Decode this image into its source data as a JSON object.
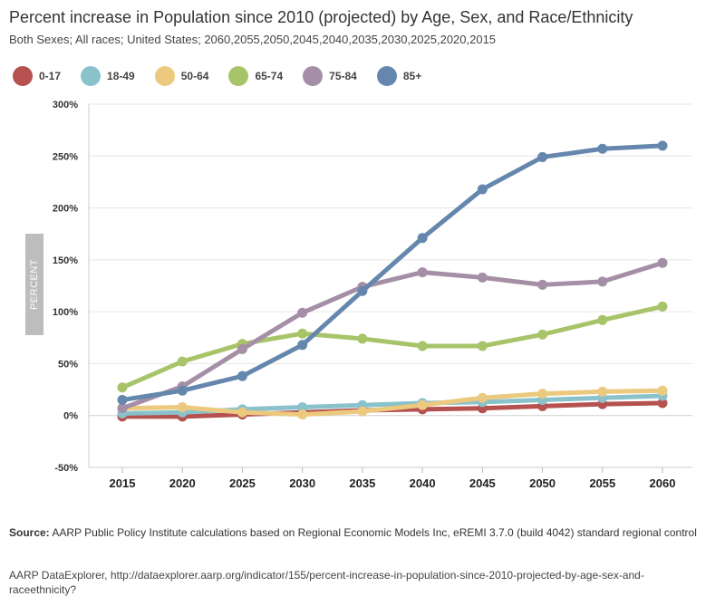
{
  "header": {
    "title": "Percent increase in Population since 2010 (projected) by Age, Sex, and Race/Ethnicity",
    "subtitle": "Both Sexes; All races; United States; 2060,2055,2050,2045,2040,2035,2030,2025,2020,2015"
  },
  "legend": [
    {
      "label": "0-17",
      "color": "#b5514f"
    },
    {
      "label": "18-49",
      "color": "#8ac2cc"
    },
    {
      "label": "50-64",
      "color": "#ebc97e"
    },
    {
      "label": "65-74",
      "color": "#a8c46a"
    },
    {
      "label": "75-84",
      "color": "#a48fa6"
    },
    {
      "label": "85+",
      "color": "#6587ad"
    }
  ],
  "footer": {
    "source_label": "Source:",
    "source_text": "AARP Public Policy Institute calculations based on Regional Economic Models Inc, eREMI 3.7.0 (build 4042) standard regional control",
    "link_text": "AARP DataExplorer, http://dataexplorer.aarp.org/indicator/155/percent-increase-in-population-since-2010-projected-by-age-sex-and-raceethnicity?"
  },
  "chart_data": {
    "type": "line",
    "ylabel": "PERCENT",
    "xlabel": "",
    "x": [
      "2015",
      "2020",
      "2025",
      "2030",
      "2035",
      "2040",
      "2045",
      "2050",
      "2055",
      "2060"
    ],
    "ylim": [
      -50,
      300
    ],
    "yticks": [
      -50,
      0,
      50,
      100,
      150,
      200,
      250,
      300
    ],
    "ytick_labels": [
      "-50%",
      "0%",
      "50%",
      "100%",
      "150%",
      "200%",
      "250%",
      "300%"
    ],
    "grid": true,
    "legend_position": "top-left",
    "series": [
      {
        "name": "0-17",
        "color": "#b5514f",
        "values": [
          -1,
          -1,
          1,
          3,
          5,
          6,
          7,
          9,
          11,
          12
        ]
      },
      {
        "name": "18-49",
        "color": "#8ac2cc",
        "values": [
          2,
          3,
          6,
          8,
          10,
          12,
          13,
          15,
          17,
          19
        ]
      },
      {
        "name": "50-64",
        "color": "#ebc97e",
        "values": [
          7,
          8,
          3,
          1,
          4,
          10,
          17,
          21,
          23,
          24
        ]
      },
      {
        "name": "65-74",
        "color": "#a8c46a",
        "values": [
          27,
          52,
          69,
          79,
          74,
          67,
          67,
          78,
          92,
          105
        ]
      },
      {
        "name": "75-84",
        "color": "#a48fa6",
        "values": [
          7,
          28,
          64,
          99,
          124,
          138,
          133,
          126,
          129,
          147
        ]
      },
      {
        "name": "85+",
        "color": "#6587ad",
        "values": [
          15,
          24,
          38,
          68,
          120,
          171,
          218,
          249,
          257,
          260
        ]
      }
    ]
  }
}
